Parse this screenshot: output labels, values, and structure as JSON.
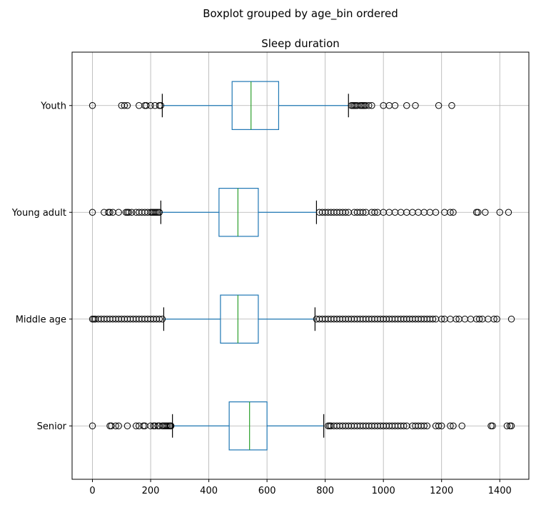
{
  "chart_data": {
    "type": "boxplot",
    "suptitle": "Boxplot grouped by age_bin ordered",
    "title": "Sleep duration",
    "xlabel": "",
    "ylabel": "",
    "orientation": "horizontal",
    "xlim": [
      -70,
      1500
    ],
    "xticks": [
      0,
      200,
      400,
      600,
      800,
      1000,
      1200,
      1400
    ],
    "grid": true,
    "colors": {
      "box": "#1f77b4",
      "median": "#2ca02c",
      "flier": "#000000",
      "grid": "#b0b0b0"
    },
    "categories": [
      "Senior",
      "Middle age",
      "Young adult",
      "Youth"
    ],
    "boxes": [
      {
        "label": "Senior",
        "q1": 470,
        "median": 540,
        "q3": 600,
        "whisker_low": 275,
        "whisker_high": 795,
        "outliers": [
          0,
          60,
          65,
          80,
          90,
          120,
          150,
          160,
          175,
          180,
          200,
          210,
          215,
          225,
          230,
          240,
          245,
          250,
          255,
          260,
          265,
          268,
          270,
          810,
          815,
          820,
          830,
          840,
          850,
          860,
          870,
          880,
          890,
          900,
          910,
          920,
          930,
          940,
          950,
          960,
          970,
          980,
          990,
          1000,
          1010,
          1020,
          1030,
          1040,
          1050,
          1060,
          1070,
          1080,
          1100,
          1110,
          1120,
          1130,
          1140,
          1150,
          1180,
          1190,
          1200,
          1230,
          1240,
          1270,
          1370,
          1375,
          1425,
          1435,
          1440
        ]
      },
      {
        "label": "Middle age",
        "q1": 440,
        "median": 500,
        "q3": 570,
        "whisker_low": 245,
        "whisker_high": 765,
        "outliers": [
          0,
          5,
          10,
          20,
          30,
          40,
          50,
          60,
          70,
          80,
          90,
          100,
          110,
          120,
          130,
          140,
          150,
          160,
          170,
          180,
          190,
          200,
          210,
          220,
          230,
          240,
          770,
          780,
          790,
          800,
          810,
          820,
          830,
          840,
          850,
          860,
          870,
          880,
          890,
          900,
          910,
          920,
          930,
          940,
          950,
          960,
          970,
          980,
          990,
          1000,
          1010,
          1020,
          1030,
          1040,
          1050,
          1060,
          1070,
          1080,
          1090,
          1100,
          1110,
          1120,
          1130,
          1140,
          1150,
          1160,
          1170,
          1180,
          1200,
          1210,
          1230,
          1250,
          1260,
          1280,
          1300,
          1320,
          1330,
          1340,
          1360,
          1380,
          1390,
          1440
        ]
      },
      {
        "label": "Young adult",
        "q1": 435,
        "median": 500,
        "q3": 570,
        "whisker_low": 235,
        "whisker_high": 770,
        "outliers": [
          0,
          40,
          55,
          60,
          70,
          90,
          115,
          120,
          125,
          135,
          150,
          160,
          170,
          180,
          190,
          200,
          205,
          210,
          215,
          220,
          225,
          230,
          780,
          790,
          800,
          810,
          820,
          830,
          840,
          850,
          860,
          870,
          880,
          900,
          910,
          920,
          930,
          940,
          960,
          970,
          980,
          1000,
          1020,
          1040,
          1060,
          1080,
          1100,
          1120,
          1140,
          1160,
          1180,
          1210,
          1230,
          1240,
          1320,
          1325,
          1350,
          1400,
          1430
        ]
      },
      {
        "label": "Youth",
        "q1": 480,
        "median": 545,
        "q3": 640,
        "whisker_low": 240,
        "whisker_high": 880,
        "outliers": [
          0,
          100,
          110,
          120,
          160,
          180,
          185,
          200,
          215,
          230,
          235,
          890,
          895,
          900,
          905,
          910,
          920,
          925,
          930,
          935,
          940,
          950,
          960,
          1000,
          1020,
          1040,
          1080,
          1110,
          1190,
          1235
        ]
      }
    ]
  }
}
